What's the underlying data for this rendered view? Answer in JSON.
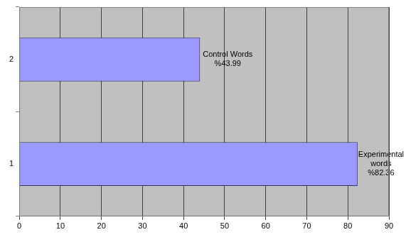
{
  "chart_data": {
    "type": "bar",
    "orientation": "horizontal",
    "categories": [
      "1",
      "2"
    ],
    "values": [
      82.36,
      43.99
    ],
    "value_labels": [
      "%82.36",
      "%43.99"
    ],
    "annotations": [
      "Experimental words",
      "Control Words"
    ],
    "color": "#9999ff",
    "xlim": [
      0,
      90
    ],
    "xticks": [
      0,
      10,
      20,
      30,
      40,
      50,
      60,
      70,
      80,
      90
    ],
    "grid": true,
    "data_labels": true
  }
}
